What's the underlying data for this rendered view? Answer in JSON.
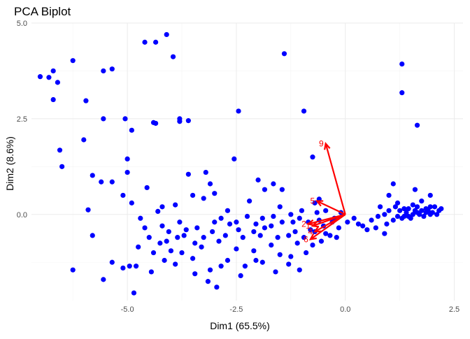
{
  "chart_data": {
    "type": "scatter",
    "title": "PCA Biplot",
    "xlabel": "Dim1 (65.5%)",
    "ylabel": "Dim2 (8.6%)",
    "xlim": [
      -7.2,
      2.7
    ],
    "ylim": [
      -2.25,
      5.0
    ],
    "x_ticks": [
      -5.0,
      -2.5,
      0.0,
      2.5
    ],
    "x_tick_labels": [
      "-5.0",
      "-2.5",
      "0.0",
      "2.5"
    ],
    "y_ticks": [
      0.0,
      2.5,
      5.0
    ],
    "y_tick_labels": [
      "0.0",
      "2.5",
      "5.0"
    ],
    "grid": true,
    "point_color": "#0000ff",
    "arrow_color": "#ff0000",
    "points": [
      [
        -7.0,
        3.6
      ],
      [
        -6.8,
        3.58
      ],
      [
        -6.7,
        3.75
      ],
      [
        -6.6,
        3.45
      ],
      [
        -6.7,
        3.0
      ],
      [
        -6.25,
        4.02
      ],
      [
        -5.55,
        3.75
      ],
      [
        -5.35,
        3.8
      ],
      [
        -4.6,
        4.5
      ],
      [
        -4.35,
        4.5
      ],
      [
        -4.1,
        4.7
      ],
      [
        -3.95,
        4.12
      ],
      [
        -1.4,
        4.2
      ],
      [
        1.3,
        3.93
      ],
      [
        1.3,
        3.18
      ],
      [
        1.65,
        2.33
      ],
      [
        -5.95,
        2.97
      ],
      [
        -5.55,
        2.5
      ],
      [
        -5.05,
        2.5
      ],
      [
        -4.9,
        2.2
      ],
      [
        -4.4,
        2.4
      ],
      [
        -4.35,
        2.38
      ],
      [
        -3.8,
        2.5
      ],
      [
        -3.8,
        2.43
      ],
      [
        -3.6,
        2.45
      ],
      [
        -2.45,
        2.7
      ],
      [
        -0.95,
        2.7
      ],
      [
        -6.55,
        1.68
      ],
      [
        -6.5,
        1.25
      ],
      [
        -6.0,
        1.95
      ],
      [
        -5.8,
        1.02
      ],
      [
        -5.6,
        0.85
      ],
      [
        -5.35,
        0.85
      ],
      [
        -5.0,
        1.45
      ],
      [
        -5.0,
        1.1
      ],
      [
        -5.1,
        0.5
      ],
      [
        -4.9,
        0.3
      ],
      [
        -4.55,
        0.7
      ],
      [
        -4.2,
        0.2
      ],
      [
        -3.6,
        1.05
      ],
      [
        -3.2,
        1.1
      ],
      [
        -3.1,
        0.8
      ],
      [
        -2.55,
        1.45
      ],
      [
        -2.0,
        0.9
      ],
      [
        -1.85,
        0.65
      ],
      [
        -1.65,
        0.8
      ],
      [
        -1.45,
        0.65
      ],
      [
        -0.75,
        1.5
      ],
      [
        -0.7,
        0.3
      ],
      [
        -0.6,
        0.4
      ],
      [
        -5.9,
        0.12
      ],
      [
        -5.8,
        -0.55
      ],
      [
        -6.25,
        -1.45
      ],
      [
        -5.55,
        -1.7
      ],
      [
        -5.35,
        -1.25
      ],
      [
        -5.1,
        -1.4
      ],
      [
        -4.95,
        -1.35
      ],
      [
        -4.85,
        -2.05
      ],
      [
        -4.8,
        -1.35
      ],
      [
        -4.7,
        -0.1
      ],
      [
        -4.3,
        0.08
      ],
      [
        -4.2,
        -0.3
      ],
      [
        -3.9,
        0.25
      ],
      [
        -3.5,
        0.5
      ],
      [
        -3.25,
        0.42
      ],
      [
        -3.0,
        0.55
      ],
      [
        -2.7,
        0.1
      ],
      [
        -2.5,
        -0.2
      ],
      [
        -2.2,
        0.35
      ],
      [
        -2.1,
        -0.45
      ],
      [
        -1.9,
        -0.1
      ],
      [
        -1.7,
        -0.3
      ],
      [
        -1.5,
        0.2
      ],
      [
        -1.3,
        -0.55
      ],
      [
        -1.2,
        -0.2
      ],
      [
        -1.0,
        0.1
      ],
      [
        -0.8,
        -0.4
      ],
      [
        -0.6,
        -0.15
      ],
      [
        -0.45,
        -0.5
      ],
      [
        -0.3,
        -0.2
      ],
      [
        -0.15,
        -0.35
      ],
      [
        -4.4,
        -1.0
      ],
      [
        -4.1,
        -0.7
      ],
      [
        -3.9,
        -1.3
      ],
      [
        -3.7,
        -0.55
      ],
      [
        -3.5,
        -1.15
      ],
      [
        -3.3,
        -0.85
      ],
      [
        -3.1,
        -1.45
      ],
      [
        -2.9,
        -0.7
      ],
      [
        -2.7,
        -1.2
      ],
      [
        -2.5,
        -0.9
      ],
      [
        -2.3,
        -1.35
      ],
      [
        -2.1,
        -0.95
      ],
      [
        -1.9,
        -1.25
      ],
      [
        -1.7,
        -0.8
      ],
      [
        -1.5,
        -1.05
      ],
      [
        -1.3,
        -1.3
      ],
      [
        -1.1,
        -0.75
      ],
      [
        -0.9,
        -1.0
      ],
      [
        -3.15,
        -1.75
      ],
      [
        -2.95,
        -1.9
      ],
      [
        -2.4,
        -1.6
      ],
      [
        -1.6,
        -1.5
      ],
      [
        -1.05,
        -1.45
      ],
      [
        -4.6,
        -0.35
      ],
      [
        -4.0,
        -0.95
      ],
      [
        -3.8,
        -0.2
      ],
      [
        -3.4,
        -0.35
      ],
      [
        -3.0,
        -0.2
      ],
      [
        -2.75,
        -0.55
      ],
      [
        -2.35,
        -0.6
      ],
      [
        -1.95,
        -0.55
      ],
      [
        -1.55,
        -0.6
      ],
      [
        -1.15,
        -0.45
      ],
      [
        -0.75,
        -0.8
      ],
      [
        -0.55,
        -0.7
      ],
      [
        -0.35,
        -0.55
      ],
      [
        -0.2,
        -0.6
      ],
      [
        -4.45,
        -1.5
      ],
      [
        -4.15,
        -1.2
      ],
      [
        -3.75,
        -1.0
      ],
      [
        -3.45,
        -1.55
      ],
      [
        -2.85,
        -1.35
      ],
      [
        -2.05,
        -1.2
      ],
      [
        -1.25,
        -1.1
      ],
      [
        -0.95,
        -0.6
      ],
      [
        -0.7,
        -0.45
      ],
      [
        -0.5,
        -0.3
      ],
      [
        0.05,
        -0.2
      ],
      [
        0.2,
        -0.1
      ],
      [
        0.4,
        -0.3
      ],
      [
        0.6,
        -0.15
      ],
      [
        0.75,
        -0.05
      ],
      [
        0.9,
        0.0
      ],
      [
        1.0,
        0.1
      ],
      [
        1.1,
        -0.15
      ],
      [
        0.8,
        0.2
      ],
      [
        1.0,
        0.5
      ],
      [
        1.2,
        0.3
      ],
      [
        1.35,
        0.15
      ],
      [
        1.45,
        -0.05
      ],
      [
        1.55,
        0.25
      ],
      [
        1.65,
        0.05
      ],
      [
        1.75,
        0.35
      ],
      [
        1.85,
        0.15
      ],
      [
        1.95,
        0.0
      ],
      [
        2.05,
        0.2
      ],
      [
        2.15,
        0.1
      ],
      [
        1.6,
        0.65
      ],
      [
        1.95,
        0.5
      ],
      [
        1.1,
        0.8
      ],
      [
        2.2,
        0.15
      ],
      [
        1.2,
        -0.05
      ],
      [
        1.3,
        -0.1
      ],
      [
        1.4,
        0.05
      ],
      [
        1.5,
        -0.1
      ],
      [
        1.6,
        0.1
      ],
      [
        1.7,
        0.0
      ],
      [
        1.8,
        -0.05
      ],
      [
        1.9,
        0.1
      ],
      [
        2.0,
        0.05
      ],
      [
        1.25,
        0.1
      ],
      [
        1.35,
        -0.05
      ],
      [
        1.45,
        0.15
      ],
      [
        1.55,
        0.0
      ],
      [
        1.65,
        0.2
      ],
      [
        1.75,
        0.1
      ],
      [
        1.85,
        0.05
      ],
      [
        1.95,
        0.2
      ],
      [
        2.1,
        0.0
      ],
      [
        0.5,
        -0.4
      ],
      [
        0.7,
        -0.35
      ],
      [
        0.3,
        -0.25
      ],
      [
        0.95,
        -0.25
      ],
      [
        1.15,
        0.2
      ],
      [
        0.9,
        -0.5
      ],
      [
        -0.25,
        -0.1
      ],
      [
        -0.1,
        0.05
      ],
      [
        -0.45,
        0.1
      ],
      [
        -0.65,
        0.05
      ],
      [
        -0.85,
        -0.2
      ],
      [
        -1.05,
        -0.1
      ],
      [
        -1.25,
        0.0
      ],
      [
        -1.45,
        -0.2
      ],
      [
        -1.65,
        -0.05
      ],
      [
        -1.85,
        -0.35
      ],
      [
        -2.05,
        -0.25
      ],
      [
        -2.25,
        -0.05
      ],
      [
        -2.45,
        -0.4
      ],
      [
        -2.65,
        -0.25
      ],
      [
        -2.85,
        -0.1
      ],
      [
        -3.05,
        -0.45
      ],
      [
        -3.25,
        -0.6
      ],
      [
        -3.45,
        -0.75
      ],
      [
        -3.65,
        -0.4
      ],
      [
        -3.85,
        -0.6
      ],
      [
        -4.05,
        -0.45
      ],
      [
        -4.25,
        -0.75
      ],
      [
        -4.5,
        -0.6
      ],
      [
        -4.75,
        -0.85
      ]
    ],
    "loadings": [
      {
        "label": "9",
        "x": -0.45,
        "y": 1.85
      },
      {
        "label": "5",
        "x": -0.65,
        "y": 0.35
      },
      {
        "label": "2",
        "x": -0.85,
        "y": -0.25
      },
      {
        "label": "1",
        "x": -0.75,
        "y": -0.3
      },
      {
        "label": "4",
        "x": -0.7,
        "y": -0.45
      },
      {
        "label": "6",
        "x": -0.8,
        "y": -0.65
      }
    ]
  }
}
